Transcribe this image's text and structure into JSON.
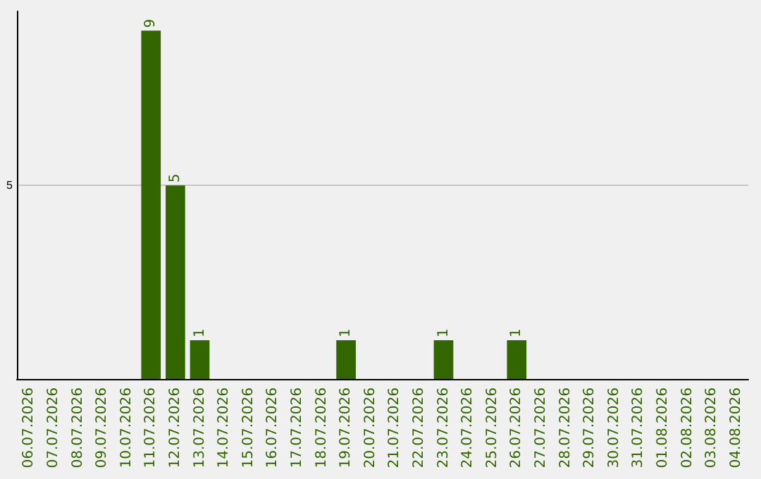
{
  "chart_data": {
    "type": "bar",
    "categories": [
      "06.07.2026",
      "07.07.2026",
      "08.07.2026",
      "09.07.2026",
      "10.07.2026",
      "11.07.2026",
      "12.07.2026",
      "13.07.2026",
      "14.07.2026",
      "15.07.2026",
      "16.07.2026",
      "17.07.2026",
      "18.07.2026",
      "19.07.2026",
      "20.07.2026",
      "21.07.2026",
      "22.07.2026",
      "23.07.2026",
      "24.07.2026",
      "25.07.2026",
      "26.07.2026",
      "27.07.2026",
      "28.07.2026",
      "29.07.2026",
      "30.07.2026",
      "31.07.2026",
      "01.08.2026",
      "02.08.2026",
      "03.08.2026",
      "04.08.2026"
    ],
    "values": [
      0,
      0,
      0,
      0,
      0,
      9,
      5,
      1,
      0,
      0,
      0,
      0,
      0,
      1,
      0,
      0,
      0,
      1,
      0,
      0,
      1,
      0,
      0,
      0,
      0,
      0,
      0,
      0,
      0,
      0
    ],
    "value_labels": [
      null,
      null,
      null,
      null,
      null,
      "9",
      "5",
      "1",
      null,
      null,
      null,
      null,
      null,
      "1",
      null,
      null,
      null,
      "1",
      null,
      null,
      "1",
      null,
      null,
      null,
      null,
      null,
      null,
      null,
      null,
      null
    ],
    "color": "#336600",
    "ylim": [
      0,
      9.5
    ],
    "yticks": [
      5
    ],
    "grid": "y"
  }
}
